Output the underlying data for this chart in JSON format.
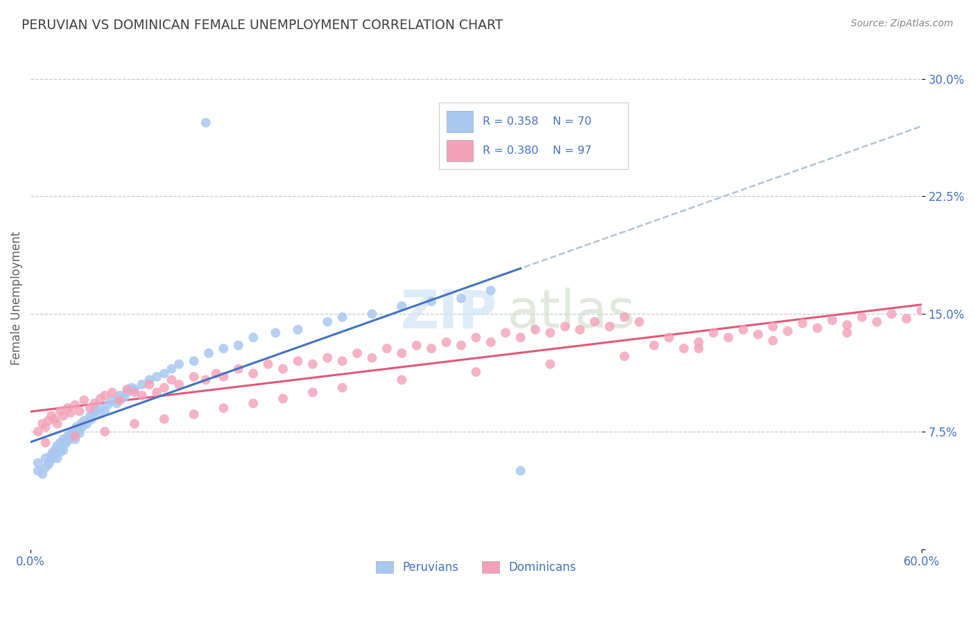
{
  "title": "PERUVIAN VS DOMINICAN FEMALE UNEMPLOYMENT CORRELATION CHART",
  "source": "Source: ZipAtlas.com",
  "ylabel": "Female Unemployment",
  "xlim": [
    0.0,
    0.6
  ],
  "ylim": [
    0.0,
    0.32
  ],
  "peruvian_color": "#A8C8F0",
  "dominican_color": "#F4A0B8",
  "peruvian_line_color_solid": "#4472C4",
  "peruvian_line_color_dash": "#A0B8D8",
  "dominican_line_color": "#E05878",
  "tick_label_color": "#4472C4",
  "title_color": "#404040",
  "axis_label_color": "#606060",
  "grid_color": "#C0CCD8",
  "R_peruvian": 0.358,
  "N_peruvian": 70,
  "R_dominican": 0.38,
  "N_dominican": 97,
  "legend_peruvian_label": "Peruvians",
  "legend_dominican_label": "Dominicans",
  "background_color": "#FFFFFF",
  "peruvian_x": [
    0.005,
    0.005,
    0.008,
    0.01,
    0.01,
    0.012,
    0.013,
    0.014,
    0.015,
    0.015,
    0.016,
    0.017,
    0.018,
    0.018,
    0.02,
    0.02,
    0.021,
    0.022,
    0.022,
    0.023,
    0.024,
    0.025,
    0.026,
    0.027,
    0.028,
    0.03,
    0.03,
    0.031,
    0.032,
    0.033,
    0.034,
    0.035,
    0.036,
    0.038,
    0.04,
    0.041,
    0.043,
    0.045,
    0.047,
    0.05,
    0.052,
    0.055,
    0.058,
    0.06,
    0.063,
    0.065,
    0.068,
    0.07,
    0.075,
    0.08,
    0.085,
    0.09,
    0.095,
    0.1,
    0.11,
    0.12,
    0.13,
    0.14,
    0.15,
    0.165,
    0.18,
    0.2,
    0.21,
    0.23,
    0.25,
    0.27,
    0.29,
    0.31,
    0.118,
    0.33
  ],
  "peruvian_y": [
    0.05,
    0.055,
    0.048,
    0.052,
    0.058,
    0.054,
    0.056,
    0.06,
    0.058,
    0.062,
    0.06,
    0.064,
    0.058,
    0.066,
    0.062,
    0.068,
    0.065,
    0.063,
    0.07,
    0.067,
    0.068,
    0.072,
    0.07,
    0.074,
    0.073,
    0.075,
    0.07,
    0.078,
    0.076,
    0.074,
    0.08,
    0.078,
    0.082,
    0.08,
    0.085,
    0.083,
    0.088,
    0.086,
    0.09,
    0.088,
    0.092,
    0.095,
    0.093,
    0.098,
    0.097,
    0.1,
    0.103,
    0.102,
    0.105,
    0.108,
    0.11,
    0.112,
    0.115,
    0.118,
    0.12,
    0.125,
    0.128,
    0.13,
    0.135,
    0.138,
    0.14,
    0.145,
    0.148,
    0.15,
    0.155,
    0.158,
    0.16,
    0.165,
    0.272,
    0.05
  ],
  "dominican_x": [
    0.005,
    0.008,
    0.01,
    0.012,
    0.014,
    0.016,
    0.018,
    0.02,
    0.022,
    0.025,
    0.027,
    0.03,
    0.033,
    0.036,
    0.04,
    0.043,
    0.047,
    0.05,
    0.055,
    0.06,
    0.065,
    0.07,
    0.075,
    0.08,
    0.085,
    0.09,
    0.095,
    0.1,
    0.11,
    0.118,
    0.125,
    0.13,
    0.14,
    0.15,
    0.16,
    0.17,
    0.18,
    0.19,
    0.2,
    0.21,
    0.22,
    0.23,
    0.24,
    0.25,
    0.26,
    0.27,
    0.28,
    0.29,
    0.3,
    0.31,
    0.32,
    0.33,
    0.34,
    0.35,
    0.36,
    0.37,
    0.38,
    0.39,
    0.4,
    0.41,
    0.42,
    0.43,
    0.44,
    0.45,
    0.46,
    0.47,
    0.48,
    0.49,
    0.5,
    0.51,
    0.52,
    0.53,
    0.54,
    0.55,
    0.56,
    0.57,
    0.58,
    0.59,
    0.6,
    0.01,
    0.03,
    0.05,
    0.07,
    0.09,
    0.11,
    0.13,
    0.15,
    0.17,
    0.19,
    0.21,
    0.25,
    0.3,
    0.35,
    0.4,
    0.45,
    0.5,
    0.55
  ],
  "dominican_y": [
    0.075,
    0.08,
    0.078,
    0.082,
    0.085,
    0.083,
    0.08,
    0.088,
    0.085,
    0.09,
    0.087,
    0.092,
    0.088,
    0.095,
    0.09,
    0.093,
    0.096,
    0.098,
    0.1,
    0.095,
    0.102,
    0.1,
    0.098,
    0.105,
    0.1,
    0.103,
    0.108,
    0.105,
    0.11,
    0.108,
    0.112,
    0.11,
    0.115,
    0.112,
    0.118,
    0.115,
    0.12,
    0.118,
    0.122,
    0.12,
    0.125,
    0.122,
    0.128,
    0.125,
    0.13,
    0.128,
    0.132,
    0.13,
    0.135,
    0.132,
    0.138,
    0.135,
    0.14,
    0.138,
    0.142,
    0.14,
    0.145,
    0.142,
    0.148,
    0.145,
    0.13,
    0.135,
    0.128,
    0.132,
    0.138,
    0.135,
    0.14,
    0.137,
    0.142,
    0.139,
    0.144,
    0.141,
    0.146,
    0.143,
    0.148,
    0.145,
    0.15,
    0.147,
    0.152,
    0.068,
    0.072,
    0.075,
    0.08,
    0.083,
    0.086,
    0.09,
    0.093,
    0.096,
    0.1,
    0.103,
    0.108,
    0.113,
    0.118,
    0.123,
    0.128,
    0.133,
    0.138
  ]
}
